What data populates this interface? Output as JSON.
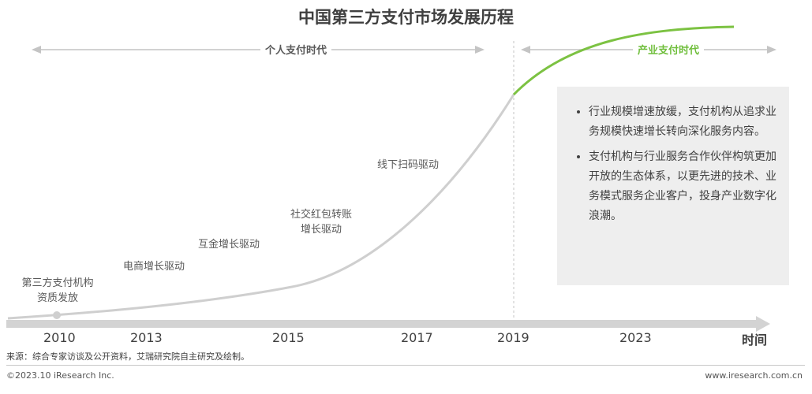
{
  "title": "中国第三方支付市场发展历程",
  "eras": {
    "personal": "个人支付时代",
    "industry": "产业支付时代"
  },
  "chart_data": {
    "type": "line",
    "x_axis_label": "时间",
    "x_ticks": [
      "2010",
      "2013",
      "2015",
      "2017",
      "2019",
      "2023"
    ],
    "milestones": [
      {
        "label_lines": [
          "第三方支付机构",
          "资质发放"
        ]
      },
      {
        "label_lines": [
          "电商增长驱动"
        ]
      },
      {
        "label_lines": [
          "互金增长驱动"
        ]
      },
      {
        "label_lines": [
          "社交红包转账",
          "增长驱动"
        ]
      },
      {
        "label_lines": [
          "线下扫码驱动"
        ]
      }
    ],
    "series": [
      {
        "segment": "个人支付时代",
        "color": "#cfcfcf"
      },
      {
        "segment": "产业支付时代",
        "color": "#7cc242"
      }
    ],
    "divider_at": "2019",
    "y_axis": "none"
  },
  "info_points": [
    "行业规模增速放缓，支付机构从追求业务规模快速增长转向深化服务内容。",
    "支付机构与行业服务合作伙伴构筑更加开放的生态体系，以更先进的技术、业务模式服务企业客户，投身产业数字化浪潮。"
  ],
  "source_note": "来源：综合专家访谈及公开资料，艾瑞研究院自主研究及绘制。",
  "copyright": "©2023.10 iResearch Inc.",
  "website": "www.iresearch.com.cn",
  "colors": {
    "accent_green": "#7cc242",
    "curve_gray": "#cfcfcf",
    "axis_gray": "#d0d0d0",
    "box_bg": "#eeeeee"
  }
}
